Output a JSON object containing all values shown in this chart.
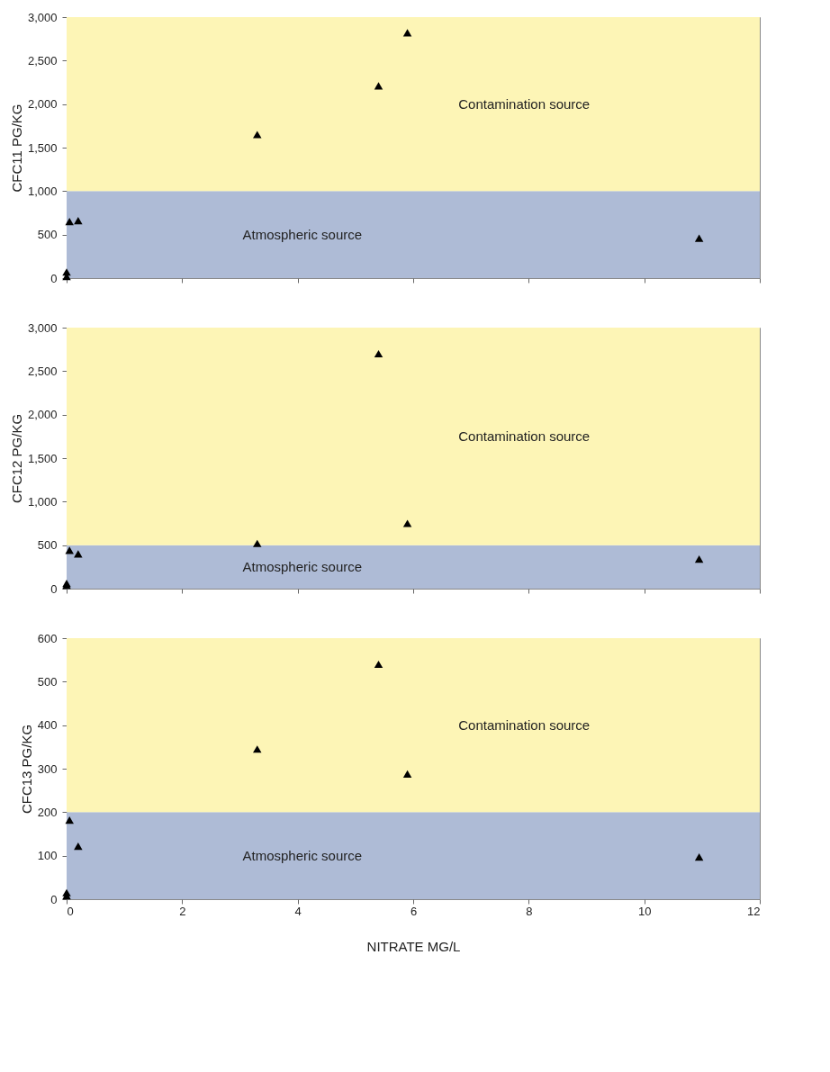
{
  "chart_data": [
    {
      "type": "scatter",
      "ylabel": "CFC11 PG/KG",
      "x": [
        0.05,
        0.2,
        3.3,
        5.4,
        5.9,
        10.95,
        0,
        0
      ],
      "series": [
        {
          "color": "#000000",
          "values": [
            650,
            660,
            1650,
            2210,
            2820,
            460,
            70,
            20
          ]
        }
      ],
      "marker": "triangle",
      "xlim": [
        0,
        12
      ],
      "xticks": [
        0,
        2,
        4,
        6,
        8,
        10,
        12
      ],
      "ylim": [
        0,
        3000
      ],
      "yticks": [
        {
          "value": 0,
          "label": "0"
        },
        {
          "value": 500,
          "label": "500"
        },
        {
          "value": 1000,
          "label": "1,000"
        },
        {
          "value": 1500,
          "label": "1,500"
        },
        {
          "value": 2000,
          "label": "2,000"
        },
        {
          "value": 2500,
          "label": "2,500"
        },
        {
          "value": 3000,
          "label": "3,000"
        }
      ],
      "bands": [
        {
          "axis": "y",
          "from": 0,
          "to": 1000,
          "label": "Atmospheric source",
          "color": "#aebbd6"
        },
        {
          "axis": "y",
          "from": 1000,
          "to": 3000,
          "label": "Contamination source",
          "color": "#fdf5b6"
        }
      ],
      "tick_labels": "y",
      "grid": false
    },
    {
      "type": "scatter",
      "ylabel": "CFC12 PG/KG",
      "x": [
        0.05,
        0.2,
        3.3,
        5.4,
        5.9,
        10.95,
        0,
        0
      ],
      "series": [
        {
          "color": "#000000",
          "values": [
            440,
            400,
            520,
            2700,
            750,
            340,
            60,
            40
          ]
        }
      ],
      "marker": "triangle",
      "xlim": [
        0,
        12
      ],
      "xticks": [
        0,
        2,
        4,
        6,
        8,
        10,
        12
      ],
      "ylim": [
        0,
        3000
      ],
      "yticks": [
        {
          "value": 0,
          "label": "0"
        },
        {
          "value": 500,
          "label": "500"
        },
        {
          "value": 1000,
          "label": "1,000"
        },
        {
          "value": 1500,
          "label": "1,500"
        },
        {
          "value": 2000,
          "label": "2,000"
        },
        {
          "value": 2500,
          "label": "2,500"
        },
        {
          "value": 3000,
          "label": "3,000"
        }
      ],
      "bands": [
        {
          "axis": "y",
          "from": 0,
          "to": 500,
          "label": "Atmospheric source",
          "color": "#aebbd6"
        },
        {
          "axis": "y",
          "from": 500,
          "to": 3000,
          "label": "Contamination source",
          "color": "#fdf5b6"
        }
      ],
      "tick_labels": "y",
      "grid": false
    },
    {
      "type": "scatter",
      "ylabel": "CFC13 PG/KG",
      "xlabel": "NITRATE MG/L",
      "x": [
        0.05,
        0.2,
        3.3,
        5.4,
        5.9,
        10.95,
        0,
        0
      ],
      "series": [
        {
          "color": "#000000",
          "values": [
            182,
            122,
            345,
            540,
            288,
            97,
            15,
            8
          ]
        }
      ],
      "marker": "triangle",
      "xlim": [
        0,
        12
      ],
      "xticks": [
        0,
        2,
        4,
        6,
        8,
        10,
        12
      ],
      "ylim": [
        0,
        600
      ],
      "yticks": [
        0,
        100,
        200,
        300,
        400,
        500,
        600
      ],
      "bands": [
        {
          "axis": "y",
          "from": 0,
          "to": 200,
          "label": "Atmospheric source",
          "color": "#aebbd6"
        },
        {
          "axis": "y",
          "from": 200,
          "to": 600,
          "label": "Contamination source",
          "color": "#fdf5b6"
        }
      ],
      "grid": false
    }
  ]
}
